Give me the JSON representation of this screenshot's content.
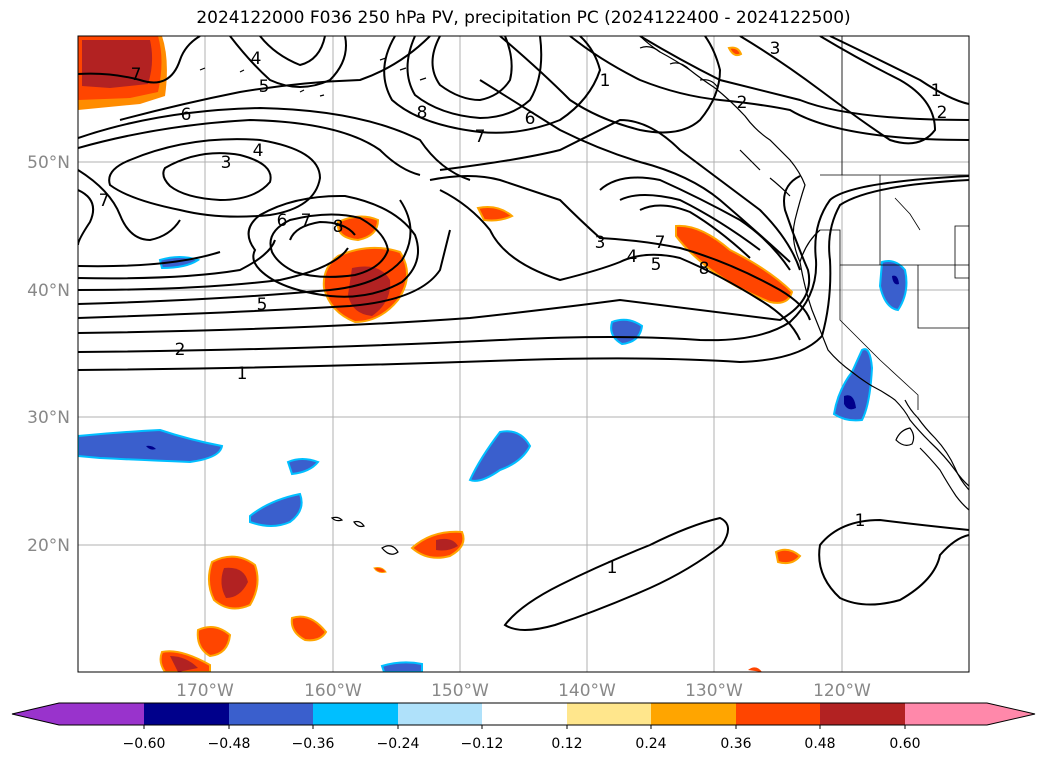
{
  "title": "2024122000 F036 250 hPa PV, precipitation PC (2024122400 - 2024122500)",
  "latitude_labels": [
    "50°N",
    "40°N",
    "30°N",
    "20°N"
  ],
  "longitude_labels": [
    "170°W",
    "160°W",
    "150°W",
    "140°W",
    "130°W",
    "120°W"
  ],
  "colorbar": {
    "tick_labels": [
      "−0.60",
      "−0.48",
      "−0.36",
      "−0.24",
      "−0.12",
      "0.12",
      "0.24",
      "0.36",
      "0.48",
      "0.60"
    ],
    "colors": [
      "#9933cc",
      "#00008b",
      "#3a5fcd",
      "#00bfff",
      "#afe1fa",
      "#ffffff",
      "#ffe68c",
      "#ffa500",
      "#ff4500",
      "#b22222",
      "#ff88aa"
    ]
  },
  "contour_labels": [
    "7",
    "4",
    "5",
    "6",
    "3",
    "4",
    "8",
    "7",
    "6",
    "1",
    "2",
    "3",
    "1",
    "2",
    "7",
    "6",
    "7",
    "8",
    "5",
    "2",
    "1",
    "3",
    "4",
    "5",
    "7",
    "8",
    "1",
    "1"
  ]
}
